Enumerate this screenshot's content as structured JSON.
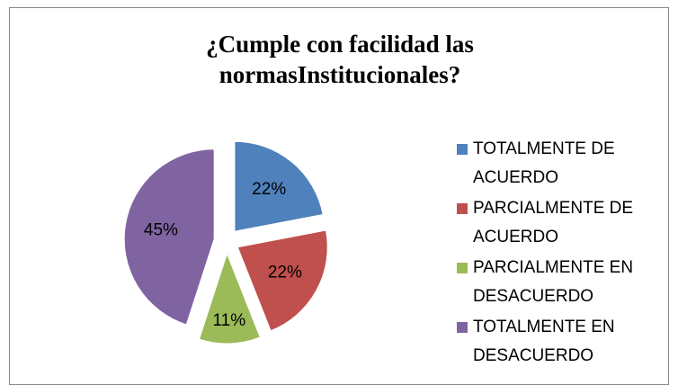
{
  "chart_data": {
    "type": "pie",
    "title": "¿Cumple con facilidad las normasInstitucionales?",
    "categories": [
      "TOTALMENTE DE ACUERDO",
      "PARCIALMENTE DE ACUERDO",
      "PARCIALMENTE EN DESACUERDO",
      "TOTALMENTE EN DESACUERDO"
    ],
    "values": [
      22,
      22,
      11,
      45
    ],
    "value_labels": [
      "22%",
      "22%",
      "11%",
      "45%"
    ],
    "colors": [
      "#4f81bd",
      "#c0504d",
      "#9bbb59",
      "#8064a2"
    ],
    "legend": "right"
  }
}
